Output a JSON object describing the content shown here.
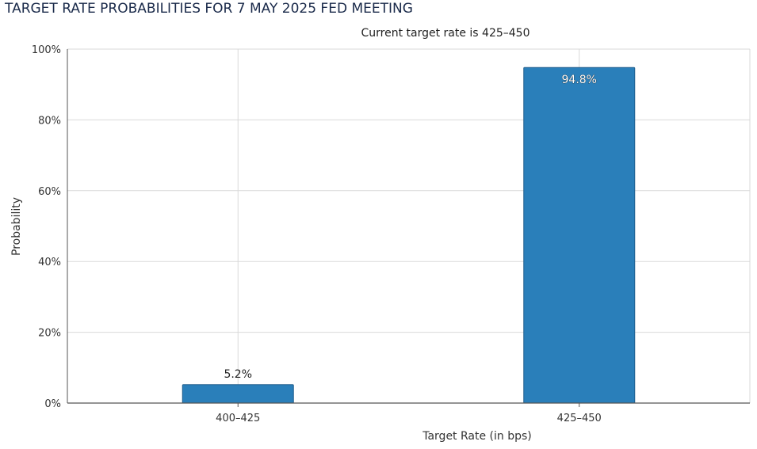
{
  "chart_data": {
    "type": "bar",
    "title": "TARGET RATE PROBABILITIES FOR 7 MAY 2025 FED MEETING",
    "subtitle": "Current target rate is 425–450",
    "xlabel": "Target Rate (in bps)",
    "ylabel": "Probability",
    "categories": [
      "400–425",
      "425–450"
    ],
    "values": [
      5.2,
      94.8
    ],
    "data_labels": [
      "5.2%",
      "94.8%"
    ],
    "ylim": [
      0,
      100
    ],
    "yticks": [
      0,
      20,
      40,
      60,
      80,
      100
    ],
    "ytick_labels": [
      "0%",
      "20%",
      "40%",
      "60%",
      "80%",
      "100%"
    ],
    "grid": true,
    "bar_color": "#2a7fba",
    "bar_edge_color": "#1f5f8e"
  }
}
